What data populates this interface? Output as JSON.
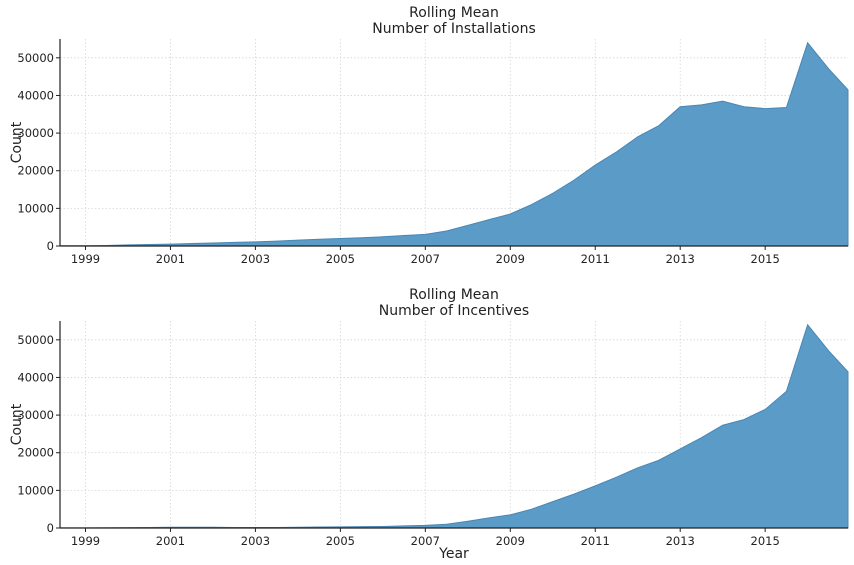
{
  "chart_data": [
    {
      "type": "area",
      "title_lines": [
        "Rolling Mean",
        "Number of Installations"
      ],
      "xlabel": "",
      "ylabel": "Count",
      "xlim": [
        1998.4,
        2016.95
      ],
      "ylim": [
        0,
        55000
      ],
      "xticks": [
        1999,
        2001,
        2003,
        2005,
        2007,
        2009,
        2011,
        2013,
        2015
      ],
      "yticks": [
        0,
        10000,
        20000,
        30000,
        40000,
        50000
      ],
      "grid": true,
      "color": "#5a9bc8",
      "x": [
        1998.4,
        1999,
        1999.5,
        2000,
        2000.5,
        2001,
        2001.5,
        2002,
        2002.5,
        2003,
        2003.5,
        2004,
        2004.5,
        2005,
        2005.5,
        2006,
        2006.5,
        2007,
        2007.5,
        2008,
        2008.5,
        2009,
        2009.5,
        2010,
        2010.5,
        2011,
        2011.5,
        2012,
        2012.5,
        2013,
        2013.5,
        2014,
        2014.5,
        2015,
        2015.5,
        2016,
        2016.5,
        2016.95
      ],
      "values": [
        50,
        80,
        150,
        300,
        400,
        500,
        650,
        800,
        950,
        1100,
        1300,
        1550,
        1800,
        2000,
        2200,
        2450,
        2800,
        3100,
        4000,
        5500,
        7000,
        8500,
        11000,
        14000,
        17500,
        21500,
        25000,
        29000,
        32000,
        37000,
        37500,
        38500,
        37000,
        36500,
        36800,
        54000,
        47000,
        41500
      ]
    },
    {
      "type": "area",
      "title_lines": [
        "Rolling Mean",
        "Number of Incentives"
      ],
      "xlabel": "Year",
      "ylabel": "Count",
      "xlim": [
        1998.4,
        2016.95
      ],
      "ylim": [
        0,
        55000
      ],
      "xticks": [
        1999,
        2001,
        2003,
        2005,
        2007,
        2009,
        2011,
        2013,
        2015
      ],
      "yticks": [
        0,
        10000,
        20000,
        30000,
        40000,
        50000
      ],
      "grid": true,
      "color": "#5a9bc8",
      "x": [
        1998.4,
        1999,
        1999.5,
        2000,
        2000.5,
        2001,
        2001.5,
        2002,
        2002.5,
        2003,
        2003.5,
        2004,
        2004.5,
        2005,
        2005.5,
        2006,
        2006.5,
        2007,
        2007.5,
        2008,
        2008.5,
        2009,
        2009.5,
        2010,
        2010.5,
        2011,
        2011.5,
        2012,
        2012.5,
        2013,
        2013.5,
        2014,
        2014.5,
        2015,
        2015.5,
        2016,
        2016.5,
        2016.95
      ],
      "values": [
        20,
        30,
        50,
        100,
        150,
        200,
        200,
        200,
        150,
        150,
        150,
        200,
        250,
        300,
        350,
        400,
        550,
        700,
        1000,
        1800,
        2700,
        3500,
        5000,
        7000,
        9000,
        11200,
        13500,
        16000,
        18000,
        21000,
        24000,
        27300,
        28800,
        31500,
        36300,
        54000,
        47000,
        41500
      ]
    }
  ]
}
